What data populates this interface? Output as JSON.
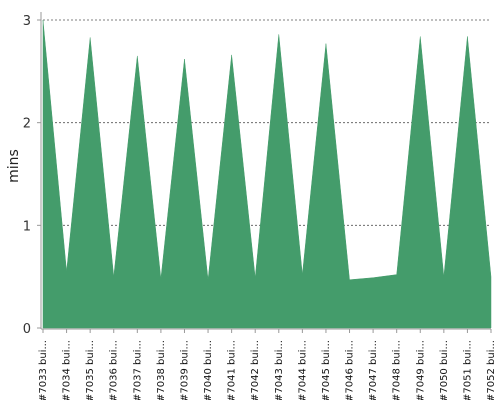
{
  "chart_data": {
    "type": "area",
    "title": "",
    "xlabel": "",
    "ylabel": "mins",
    "ylim": [
      0,
      3
    ],
    "yticks": [
      0,
      1,
      2,
      3
    ],
    "grid": true,
    "categories": [
      "#7033 bui...",
      "#7034 bui...",
      "#7035 bui...",
      "#7036 bui...",
      "#7037 bui...",
      "#7038 bui...",
      "#7039 bui...",
      "#7040 bui...",
      "#7041 bui...",
      "#7042 bui...",
      "#7043 bui...",
      "#7044 bui...",
      "#7045 bui...",
      "#7046 bui...",
      "#7047 bui...",
      "#7048 bui...",
      "#7049 bui...",
      "#7050 bui...",
      "#7051 bui...",
      "#7052 bui..."
    ],
    "series": [
      {
        "values": [
          3.0,
          0.55,
          2.83,
          0.5,
          2.65,
          0.48,
          2.62,
          0.47,
          2.66,
          0.49,
          2.86,
          0.52,
          2.77,
          0.47,
          0.49,
          0.52,
          2.84,
          0.5,
          2.84,
          0.5
        ],
        "color": "#449c6b"
      }
    ]
  }
}
